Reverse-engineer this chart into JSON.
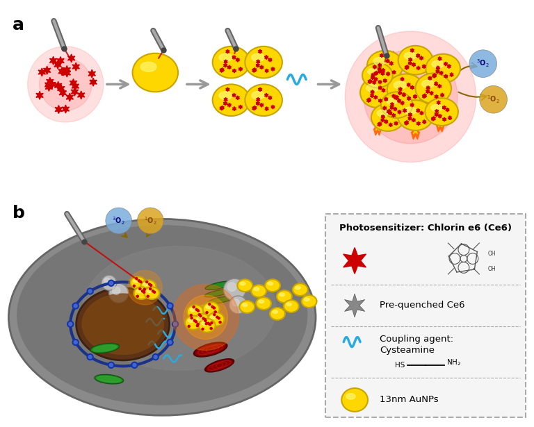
{
  "title_a": "a",
  "title_b": "b",
  "bg_color": "#ffffff",
  "legend_title": "Photosensitizer: Chlorin e6 (Ce6)",
  "gold_color": "#FFD700",
  "gold_dark": "#C8A400",
  "red_star_color": "#CC0000",
  "gray_color": "#888888",
  "o2_blue": "#7aaddb",
  "o2_gold": "#DAA520",
  "laser_color": "#CC0000",
  "wave_color": "#29ABE2",
  "fire_orange": "#FF6600",
  "fire_yellow": "#FFD700"
}
